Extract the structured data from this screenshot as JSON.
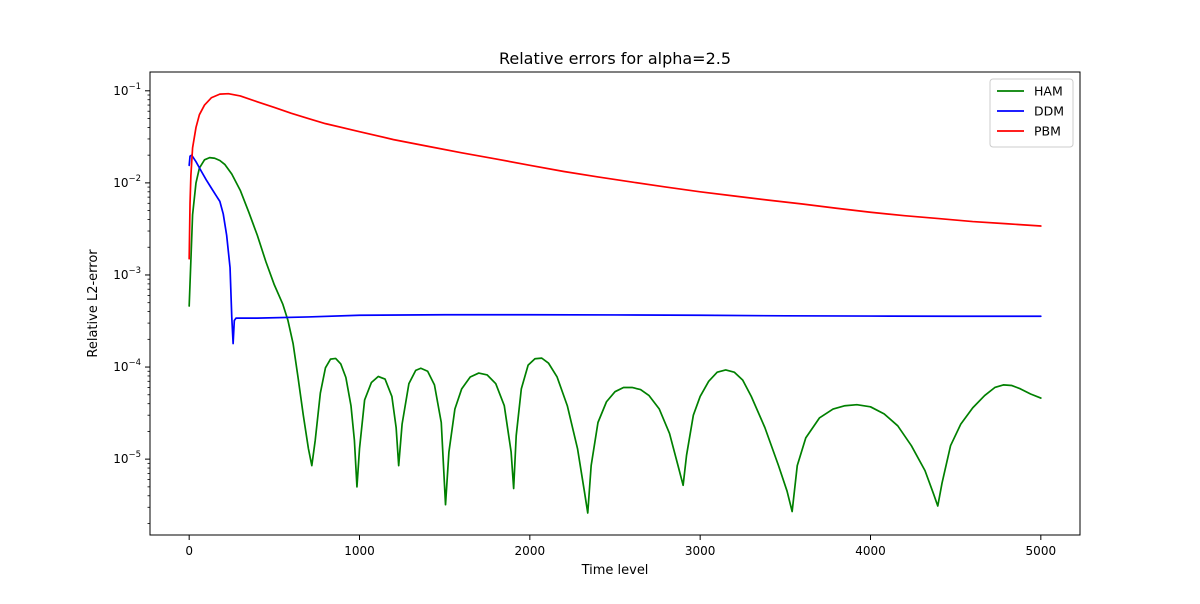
{
  "chart_data": {
    "type": "line",
    "title": "Relative errors for alpha=2.5",
    "xlabel": "Time level",
    "ylabel": "Relative L2-error",
    "yscale": "log",
    "xlim": [
      -230,
      5230
    ],
    "ylim": [
      1.5e-06,
      0.16
    ],
    "xticks": [
      {
        "value": 0,
        "label": "0"
      },
      {
        "value": 1000,
        "label": "1000"
      },
      {
        "value": 2000,
        "label": "2000"
      },
      {
        "value": 3000,
        "label": "3000"
      },
      {
        "value": 4000,
        "label": "4000"
      },
      {
        "value": 5000,
        "label": "5000"
      }
    ],
    "yticks": [
      {
        "value": 0.1,
        "base": "10",
        "exp": "−1"
      },
      {
        "value": 0.01,
        "base": "10",
        "exp": "−2"
      },
      {
        "value": 0.001,
        "base": "10",
        "exp": "−3"
      },
      {
        "value": 0.0001,
        "base": "10",
        "exp": "−4"
      },
      {
        "value": 1e-05,
        "base": "10",
        "exp": "−5"
      }
    ],
    "grid": false,
    "legend": "top-right",
    "series": [
      {
        "name": "HAM",
        "color": "#008000",
        "points": [
          [
            0,
            0.00046
          ],
          [
            20,
            0.0045
          ],
          [
            40,
            0.01
          ],
          [
            60,
            0.0145
          ],
          [
            90,
            0.0178
          ],
          [
            120,
            0.0188
          ],
          [
            150,
            0.0185
          ],
          [
            180,
            0.0175
          ],
          [
            210,
            0.0158
          ],
          [
            250,
            0.0125
          ],
          [
            300,
            0.0083
          ],
          [
            350,
            0.0048
          ],
          [
            400,
            0.0027
          ],
          [
            450,
            0.0014
          ],
          [
            500,
            0.00078
          ],
          [
            550,
            0.00048
          ],
          [
            580,
            0.00032
          ],
          [
            610,
            0.00018
          ],
          [
            640,
            7.5e-05
          ],
          [
            670,
            3e-05
          ],
          [
            700,
            1.3e-05
          ],
          [
            720,
            8.5e-06
          ],
          [
            740,
            1.6e-05
          ],
          [
            770,
            5.2e-05
          ],
          [
            800,
            9.8e-05
          ],
          [
            830,
            0.000122
          ],
          [
            860,
            0.000124
          ],
          [
            890,
            0.000108
          ],
          [
            920,
            7.7e-05
          ],
          [
            950,
            3.8e-05
          ],
          [
            970,
            1.6e-05
          ],
          [
            985,
            5e-06
          ],
          [
            1000,
            1.3e-05
          ],
          [
            1030,
            4.4e-05
          ],
          [
            1070,
            6.8e-05
          ],
          [
            1110,
            7.9e-05
          ],
          [
            1150,
            7.4e-05
          ],
          [
            1190,
            4.8e-05
          ],
          [
            1215,
            2.2e-05
          ],
          [
            1230,
            8.5e-06
          ],
          [
            1250,
            2.4e-05
          ],
          [
            1290,
            6.6e-05
          ],
          [
            1330,
            9.2e-05
          ],
          [
            1360,
            9.7e-05
          ],
          [
            1400,
            9e-05
          ],
          [
            1440,
            6.4e-05
          ],
          [
            1480,
            2.5e-05
          ],
          [
            1505,
            3.2e-06
          ],
          [
            1525,
            1.2e-05
          ],
          [
            1560,
            3.5e-05
          ],
          [
            1600,
            5.8e-05
          ],
          [
            1650,
            7.8e-05
          ],
          [
            1700,
            8.6e-05
          ],
          [
            1750,
            8.2e-05
          ],
          [
            1800,
            6.6e-05
          ],
          [
            1850,
            3.8e-05
          ],
          [
            1890,
            1.2e-05
          ],
          [
            1905,
            4.8e-06
          ],
          [
            1920,
            1.8e-05
          ],
          [
            1950,
            5.8e-05
          ],
          [
            1990,
            0.000105
          ],
          [
            2030,
            0.000123
          ],
          [
            2070,
            0.000125
          ],
          [
            2110,
            0.00011
          ],
          [
            2160,
            7.8e-05
          ],
          [
            2220,
            3.8e-05
          ],
          [
            2280,
            1.3e-05
          ],
          [
            2320,
            4.5e-06
          ],
          [
            2340,
            2.6e-06
          ],
          [
            2360,
            8.5e-06
          ],
          [
            2400,
            2.5e-05
          ],
          [
            2450,
            4.2e-05
          ],
          [
            2500,
            5.4e-05
          ],
          [
            2550,
            6e-05
          ],
          [
            2600,
            6e-05
          ],
          [
            2650,
            5.7e-05
          ],
          [
            2700,
            4.9e-05
          ],
          [
            2760,
            3.5e-05
          ],
          [
            2820,
            1.9e-05
          ],
          [
            2870,
            8.5e-06
          ],
          [
            2900,
            5.2e-06
          ],
          [
            2920,
            1.1e-05
          ],
          [
            2960,
            3e-05
          ],
          [
            3000,
            4.8e-05
          ],
          [
            3050,
            7e-05
          ],
          [
            3100,
            8.8e-05
          ],
          [
            3150,
            9.3e-05
          ],
          [
            3200,
            8.8e-05
          ],
          [
            3250,
            7.2e-05
          ],
          [
            3300,
            4.8e-05
          ],
          [
            3380,
            2.2e-05
          ],
          [
            3460,
            8.5e-06
          ],
          [
            3510,
            4.5e-06
          ],
          [
            3540,
            2.7e-06
          ],
          [
            3570,
            8.5e-06
          ],
          [
            3620,
            1.7e-05
          ],
          [
            3700,
            2.8e-05
          ],
          [
            3780,
            3.5e-05
          ],
          [
            3850,
            3.8e-05
          ],
          [
            3920,
            3.9e-05
          ],
          [
            4000,
            3.7e-05
          ],
          [
            4080,
            3.1e-05
          ],
          [
            4160,
            2.3e-05
          ],
          [
            4240,
            1.4e-05
          ],
          [
            4320,
            7.5e-06
          ],
          [
            4370,
            4.2e-06
          ],
          [
            4395,
            3.1e-06
          ],
          [
            4420,
            5.5e-06
          ],
          [
            4470,
            1.4e-05
          ],
          [
            4530,
            2.4e-05
          ],
          [
            4600,
            3.6e-05
          ],
          [
            4670,
            4.9e-05
          ],
          [
            4730,
            6e-05
          ],
          [
            4780,
            6.4e-05
          ],
          [
            4830,
            6.3e-05
          ],
          [
            4880,
            5.8e-05
          ],
          [
            4940,
            5.1e-05
          ],
          [
            5000,
            4.6e-05
          ]
        ]
      },
      {
        "name": "DDM",
        "color": "#0000ff",
        "points": [
          [
            0,
            0.0155
          ],
          [
            5,
            0.0195
          ],
          [
            15,
            0.02
          ],
          [
            40,
            0.017
          ],
          [
            70,
            0.0135
          ],
          [
            100,
            0.0108
          ],
          [
            130,
            0.0088
          ],
          [
            160,
            0.0072
          ],
          [
            180,
            0.0063
          ],
          [
            200,
            0.0046
          ],
          [
            220,
            0.0027
          ],
          [
            240,
            0.0012
          ],
          [
            250,
            0.00035
          ],
          [
            258,
            0.00018
          ],
          [
            265,
            0.00032
          ],
          [
            275,
            0.00034
          ],
          [
            400,
            0.00034
          ],
          [
            700,
            0.00035
          ],
          [
            1000,
            0.000365
          ],
          [
            1500,
            0.00037
          ],
          [
            2000,
            0.00037
          ],
          [
            2500,
            0.000368
          ],
          [
            3000,
            0.000365
          ],
          [
            3500,
            0.00036
          ],
          [
            4000,
            0.000358
          ],
          [
            4500,
            0.000356
          ],
          [
            5000,
            0.000356
          ]
        ]
      },
      {
        "name": "PBM",
        "color": "#ff0000",
        "points": [
          [
            0,
            0.0015
          ],
          [
            5,
            0.006
          ],
          [
            10,
            0.012
          ],
          [
            20,
            0.024
          ],
          [
            40,
            0.04
          ],
          [
            60,
            0.055
          ],
          [
            90,
            0.07
          ],
          [
            130,
            0.084
          ],
          [
            180,
            0.092
          ],
          [
            230,
            0.093
          ],
          [
            300,
            0.088
          ],
          [
            400,
            0.076
          ],
          [
            500,
            0.066
          ],
          [
            600,
            0.057
          ],
          [
            700,
            0.05
          ],
          [
            800,
            0.044
          ],
          [
            1000,
            0.036
          ],
          [
            1200,
            0.0295
          ],
          [
            1400,
            0.025
          ],
          [
            1600,
            0.0212
          ],
          [
            1800,
            0.0182
          ],
          [
            2000,
            0.0155
          ],
          [
            2200,
            0.0133
          ],
          [
            2400,
            0.0116
          ],
          [
            2600,
            0.0102
          ],
          [
            2800,
            0.009
          ],
          [
            3000,
            0.008
          ],
          [
            3200,
            0.0072
          ],
          [
            3400,
            0.0065
          ],
          [
            3600,
            0.0059
          ],
          [
            3800,
            0.0053
          ],
          [
            4000,
            0.0048
          ],
          [
            4200,
            0.0044
          ],
          [
            4400,
            0.0041
          ],
          [
            4600,
            0.0038
          ],
          [
            4800,
            0.0036
          ],
          [
            5000,
            0.0034
          ]
        ]
      }
    ]
  }
}
